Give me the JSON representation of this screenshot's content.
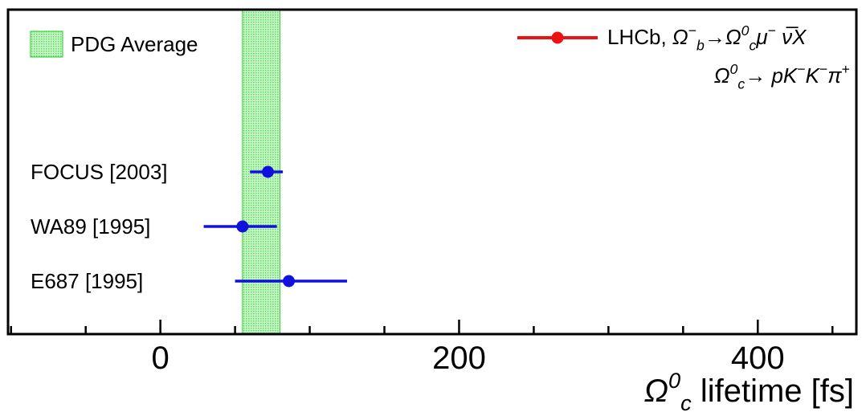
{
  "chart_data": {
    "type": "scatter",
    "title": "",
    "xlabel": {
      "symbol": "Ω",
      "superscript": "0",
      "subscript": "c",
      "text": " lifetime [fs]"
    },
    "ylabel": "",
    "xlim": [
      -102,
      466
    ],
    "x_ticks": [
      0,
      200,
      400
    ],
    "x_tick_labels": [
      "0",
      "200",
      "400"
    ],
    "x_minor_step": 50,
    "grid": false,
    "colors": {
      "band_fill": "#a8f0a8",
      "band_stroke": "#22cc22",
      "lhcb": "#ee1111",
      "measurements": "#1111dd",
      "frame": "#000000"
    },
    "band": {
      "name": "PDG Average",
      "x_range": [
        55,
        80
      ]
    },
    "series": [
      {
        "name": "FOCUS [2003]",
        "x": 72,
        "err_low": 12,
        "err_high": 10
      },
      {
        "name": "WA89 [1995]",
        "x": 55,
        "err_low": 26,
        "err_high": 23
      },
      {
        "name": "E687 [1995]",
        "x": 86,
        "err_low": 36,
        "err_high": 39
      }
    ],
    "legend": {
      "placement": "top-right",
      "lhcb": {
        "prefix": "LHCb, ",
        "line1": [
          {
            "t": "Ω",
            "it": true
          },
          {
            "t": "−",
            "sup": true
          },
          {
            "t": "b",
            "sub": true,
            "it": true
          },
          {
            "t": "→"
          },
          {
            "t": "Ω",
            "it": true
          },
          {
            "t": "0",
            "sup": true,
            "it": true
          },
          {
            "t": "c",
            "sub": true,
            "it": true
          },
          {
            "t": "μ",
            "it": true
          },
          {
            "t": "−",
            "sup": true
          },
          {
            "t": " ν̅",
            "it": true
          },
          {
            "t": "X",
            "it": true
          }
        ],
        "line2": [
          {
            "t": "Ω",
            "it": true
          },
          {
            "t": "0",
            "sup": true,
            "it": true
          },
          {
            "t": "c",
            "sub": true,
            "it": true
          },
          {
            "t": "→ "
          },
          {
            "t": "pK",
            "it": true
          },
          {
            "t": "−",
            "sup": true
          },
          {
            "t": "K",
            "it": true
          },
          {
            "t": "−",
            "sup": true
          },
          {
            "t": "π",
            "it": true
          },
          {
            "t": "+",
            "sup": true
          }
        ]
      },
      "pdg": "PDG Average"
    }
  }
}
